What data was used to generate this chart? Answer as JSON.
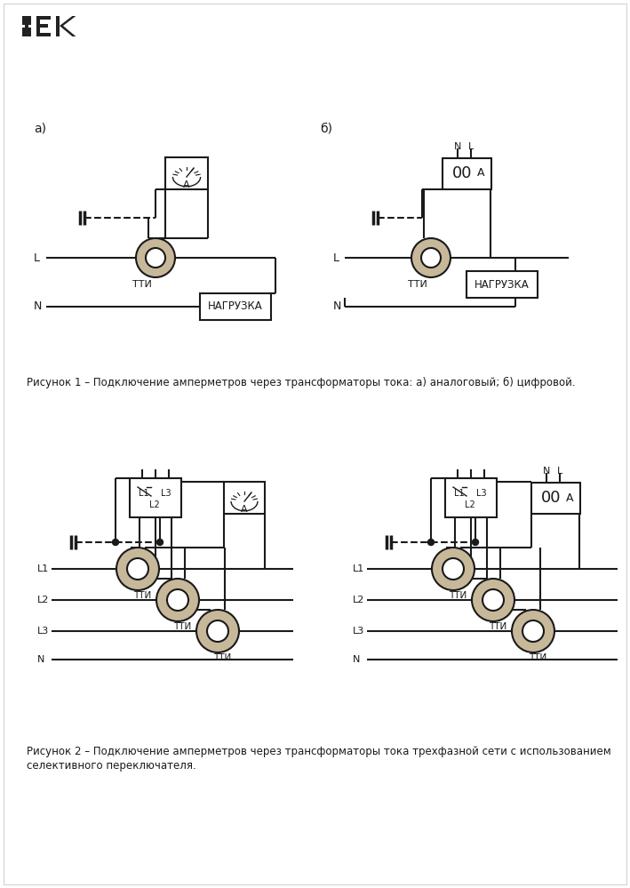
{
  "bg_color": "#ffffff",
  "line_color": "#1a1a1a",
  "torus_outer_color": "#c8b89a",
  "torus_inner_color": "#ffffff",
  "text_color": "#1a1a1a",
  "logo_color": "#222222",
  "fig_caption1": "Рисунок 1 – Подключение амперметров через трансформаторы тока: а) аналоговый; б) цифровой.",
  "fig_caption2_line1": "Рисунок 2 – Подключение амперметров через трансформаторы тока трехфазной сети с использованием",
  "fig_caption2_line2": "селективного переключателя."
}
